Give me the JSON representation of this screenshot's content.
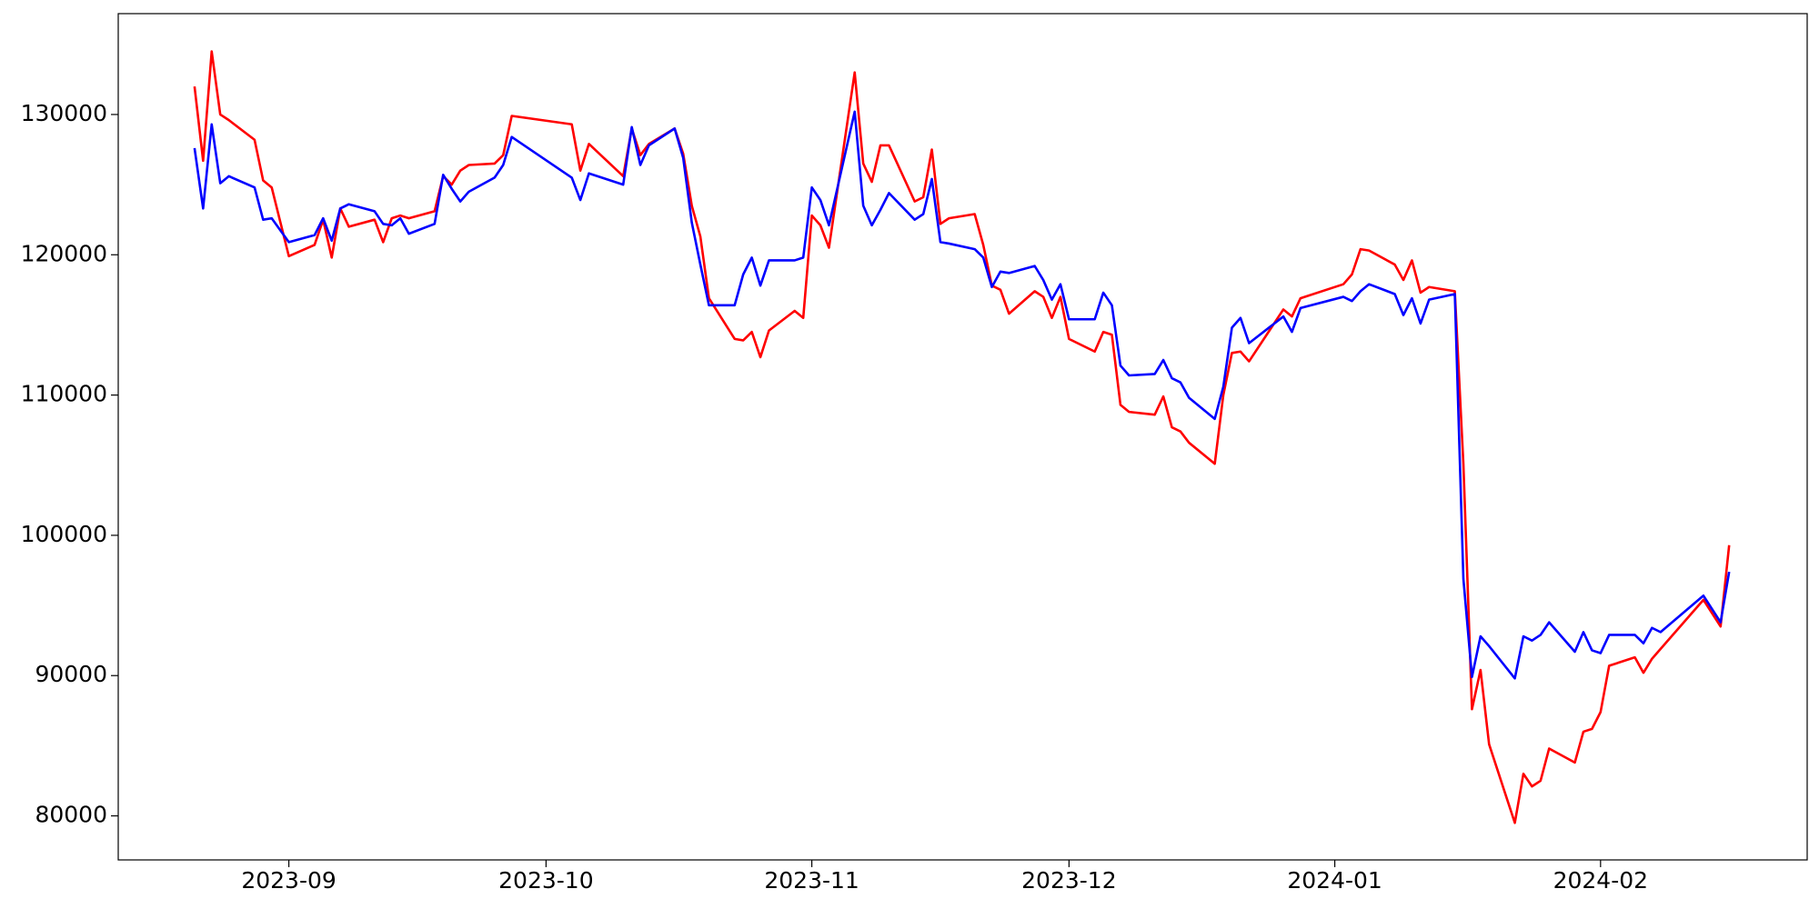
{
  "chart_data": {
    "type": "line",
    "x": [
      -11,
      -10,
      -9,
      -8,
      -7,
      -4,
      -3,
      -2,
      0,
      3,
      4,
      5,
      6,
      7,
      10,
      11,
      12,
      13,
      14,
      17,
      18,
      19,
      20,
      21,
      24,
      25,
      26,
      33,
      34,
      35,
      39,
      40,
      41,
      42,
      45,
      46,
      47,
      48,
      49,
      52,
      53,
      54,
      55,
      56,
      59,
      60,
      61,
      62,
      63,
      66,
      67,
      68,
      69,
      70,
      73,
      74,
      75,
      76,
      77,
      80,
      81,
      82,
      83,
      84,
      87,
      88,
      89,
      90,
      91,
      94,
      95,
      96,
      97,
      98,
      101,
      102,
      103,
      104,
      105,
      108,
      109,
      110,
      111,
      112,
      116,
      117,
      118,
      123,
      124,
      125,
      126,
      129,
      130,
      131,
      132,
      133,
      136,
      137,
      138,
      139,
      140,
      143,
      144,
      145,
      146,
      147,
      150,
      151,
      152,
      153,
      154,
      157,
      158,
      159,
      160,
      165,
      167,
      168
    ],
    "series": [
      {
        "color": "#ff0000",
        "values": [
          132000,
          126700,
          134500,
          130000,
          129600,
          128200,
          125300,
          124800,
          119900,
          120700,
          122500,
          119800,
          123300,
          122000,
          122500,
          120900,
          122600,
          122800,
          122600,
          123100,
          125600,
          125000,
          126000,
          126400,
          126500,
          127100,
          129900,
          129300,
          126000,
          127900,
          125600,
          129000,
          127100,
          127900,
          129000,
          127200,
          123500,
          121300,
          116900,
          114000,
          113900,
          114500,
          112700,
          114600,
          116000,
          115500,
          122800,
          122100,
          120500,
          133000,
          126500,
          125200,
          127800,
          127800,
          123800,
          124100,
          127500,
          122200,
          122600,
          122900,
          120700,
          117800,
          117500,
          115800,
          117400,
          117000,
          115500,
          117000,
          114000,
          113100,
          114500,
          114300,
          109300,
          108800,
          108600,
          109900,
          107700,
          107400,
          106600,
          105100,
          110000,
          113000,
          113100,
          112400,
          116100,
          115600,
          116900,
          117900,
          118600,
          120400,
          120300,
          119300,
          118200,
          119600,
          117300,
          117700,
          117400,
          105100,
          87600,
          90400,
          85100,
          79500,
          83000,
          82100,
          82500,
          84800,
          83800,
          86000,
          86200,
          87400,
          90700,
          91300,
          90200,
          91200,
          91900,
          95400,
          93500,
          99300
        ]
      },
      {
        "color": "#0000ff",
        "values": [
          127600,
          123300,
          129300,
          125100,
          125600,
          124800,
          122500,
          122600,
          120900,
          121400,
          122600,
          121000,
          123300,
          123600,
          123100,
          122200,
          122100,
          122600,
          121500,
          122200,
          125700,
          124700,
          123800,
          124500,
          125500,
          126400,
          128400,
          125500,
          123900,
          125800,
          125000,
          129100,
          126400,
          127800,
          129000,
          126900,
          122300,
          119300,
          116400,
          116400,
          118600,
          119800,
          117800,
          119600,
          119600,
          119800,
          124800,
          123900,
          122100,
          130200,
          123500,
          122100,
          123200,
          124400,
          122500,
          122900,
          125400,
          120900,
          120800,
          120400,
          119800,
          117700,
          118800,
          118700,
          119200,
          118200,
          116800,
          117900,
          115400,
          115400,
          117300,
          116400,
          112100,
          111400,
          111500,
          112500,
          111200,
          110900,
          109800,
          108300,
          110600,
          114800,
          115500,
          113700,
          115600,
          114500,
          116200,
          117000,
          116700,
          117400,
          117900,
          117200,
          115700,
          116900,
          115100,
          116800,
          117200,
          96900,
          89900,
          92800,
          92100,
          89800,
          92800,
          92500,
          92900,
          93800,
          91700,
          93100,
          91800,
          91600,
          92900,
          92900,
          92300,
          93400,
          93100,
          95700,
          93800,
          97400
        ]
      }
    ],
    "xlim": [
      -19.9,
      177.1
    ],
    "xticks": [
      {
        "value": 0,
        "label": "2023-09"
      },
      {
        "value": 30,
        "label": "2023-10"
      },
      {
        "value": 61,
        "label": "2023-11"
      },
      {
        "value": 91,
        "label": "2023-12"
      },
      {
        "value": 122,
        "label": "2024-01"
      },
      {
        "value": 153,
        "label": "2024-02"
      }
    ],
    "ylim": [
      76860,
      137190
    ],
    "yticks": [
      80000,
      90000,
      100000,
      110000,
      120000,
      130000
    ],
    "grid": false
  }
}
